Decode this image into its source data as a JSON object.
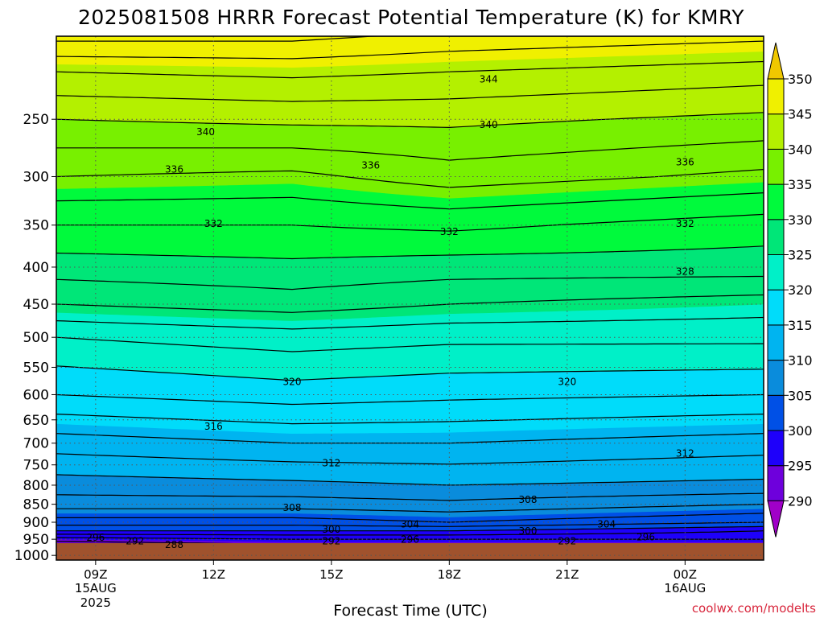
{
  "chart_data": {
    "type": "heatmap",
    "title": "2025081508 HRRR Forecast Potential Temperature (K) for KMRY",
    "xlabel": "Forecast Time (UTC)",
    "ylabel": "",
    "units": "K",
    "x_ticks": [
      {
        "hour": 9,
        "label": "09Z",
        "sub": [
          "15AUG",
          "2025"
        ]
      },
      {
        "hour": 12,
        "label": "12Z",
        "sub": []
      },
      {
        "hour": 15,
        "label": "15Z",
        "sub": []
      },
      {
        "hour": 18,
        "label": "18Z",
        "sub": []
      },
      {
        "hour": 21,
        "label": "21Z",
        "sub": []
      },
      {
        "hour": 24,
        "label": "00Z",
        "sub": [
          "16AUG"
        ]
      }
    ],
    "xlim": [
      8,
      26
    ],
    "y_ticks": [
      250,
      300,
      350,
      400,
      450,
      500,
      550,
      600,
      650,
      700,
      750,
      800,
      850,
      900,
      950,
      1000
    ],
    "ylim_hPa": [
      1015,
      192
    ],
    "y_scale": "log",
    "colorbar": {
      "levels": [
        290,
        295,
        300,
        305,
        310,
        315,
        320,
        325,
        330,
        335,
        340,
        345,
        350
      ],
      "labels": [
        "290",
        "295",
        "300",
        "305",
        "310",
        "315",
        "320",
        "325",
        "330",
        "335",
        "340",
        "345",
        "350"
      ],
      "colors": [
        "#a000c8",
        "#6e00dc",
        "#1e00fa",
        "#0050e6",
        "#0a8cdc",
        "#00b4f0",
        "#00dcfa",
        "#00f0c8",
        "#00e678",
        "#00fa3c",
        "#78f000",
        "#b4f000",
        "#f0f000",
        "#f0c800"
      ],
      "extend": "both"
    },
    "grid": true,
    "surface_color": "#a0522d",
    "contour_interval": 2,
    "profiles": [
      {
        "x": 8,
        "points": [
          [
            1000,
            287
          ],
          [
            990,
            289
          ],
          [
            975,
            291
          ],
          [
            950,
            295
          ],
          [
            925,
            300
          ],
          [
            900,
            303
          ],
          [
            850,
            307
          ],
          [
            800,
            309
          ],
          [
            700,
            313
          ],
          [
            600,
            318
          ],
          [
            500,
            322
          ],
          [
            450,
            326
          ],
          [
            400,
            329
          ],
          [
            350,
            332
          ],
          [
            300,
            336
          ],
          [
            250,
            340
          ],
          [
            215,
            344
          ],
          [
            195,
            348
          ]
        ]
      },
      {
        "x": 14,
        "points": [
          [
            1000,
            288
          ],
          [
            990,
            290
          ],
          [
            975,
            293
          ],
          [
            950,
            296
          ],
          [
            925,
            300
          ],
          [
            900,
            303
          ],
          [
            850,
            307
          ],
          [
            800,
            309.5
          ],
          [
            700,
            314
          ],
          [
            600,
            319
          ],
          [
            500,
            323
          ],
          [
            450,
            327
          ],
          [
            400,
            329.5
          ],
          [
            350,
            332
          ],
          [
            300,
            335.5
          ],
          [
            250,
            340.5
          ],
          [
            215,
            344.5
          ],
          [
            195,
            348
          ]
        ]
      },
      {
        "x": 18,
        "points": [
          [
            1000,
            288
          ],
          [
            990,
            290
          ],
          [
            975,
            293
          ],
          [
            950,
            296
          ],
          [
            925,
            300
          ],
          [
            900,
            304
          ],
          [
            850,
            307.5
          ],
          [
            800,
            310
          ],
          [
            700,
            314
          ],
          [
            600,
            318.5
          ],
          [
            500,
            322.5
          ],
          [
            450,
            326
          ],
          [
            400,
            329
          ],
          [
            350,
            332.5
          ],
          [
            300,
            337
          ],
          [
            250,
            340.5
          ],
          [
            215,
            344
          ],
          [
            195,
            347
          ]
        ]
      },
      {
        "x": 26,
        "points": [
          [
            1000,
            288
          ],
          [
            990,
            290
          ],
          [
            975,
            293
          ],
          [
            950,
            296
          ],
          [
            925,
            298
          ],
          [
            900,
            302
          ],
          [
            850,
            306
          ],
          [
            800,
            309.5
          ],
          [
            700,
            313
          ],
          [
            600,
            318
          ],
          [
            500,
            322.5
          ],
          [
            450,
            325
          ],
          [
            400,
            329
          ],
          [
            350,
            331
          ],
          [
            300,
            335.5
          ],
          [
            250,
            339.5
          ],
          [
            215,
            343
          ],
          [
            195,
            346
          ]
        ]
      }
    ],
    "contour_labels": [
      {
        "value": 344,
        "x": 19.0,
        "p": 220
      },
      {
        "value": 340,
        "x": 11.8,
        "p": 260
      },
      {
        "value": 340,
        "x": 19.0,
        "p": 254
      },
      {
        "value": 336,
        "x": 11.0,
        "p": 293
      },
      {
        "value": 336,
        "x": 16.0,
        "p": 289
      },
      {
        "value": 336,
        "x": 24.0,
        "p": 286
      },
      {
        "value": 332,
        "x": 12.0,
        "p": 348
      },
      {
        "value": 332,
        "x": 18.0,
        "p": 357
      },
      {
        "value": 332,
        "x": 24.0,
        "p": 348
      },
      {
        "value": 328,
        "x": 24.0,
        "p": 405
      },
      {
        "value": 320,
        "x": 14.0,
        "p": 575
      },
      {
        "value": 320,
        "x": 21.0,
        "p": 575
      },
      {
        "value": 316,
        "x": 12.0,
        "p": 663
      },
      {
        "value": 312,
        "x": 15.0,
        "p": 745
      },
      {
        "value": 312,
        "x": 24.0,
        "p": 722
      },
      {
        "value": 308,
        "x": 14.0,
        "p": 858
      },
      {
        "value": 308,
        "x": 20.0,
        "p": 837
      },
      {
        "value": 304,
        "x": 17.0,
        "p": 905
      },
      {
        "value": 304,
        "x": 22.0,
        "p": 905
      },
      {
        "value": 300,
        "x": 15.0,
        "p": 920
      },
      {
        "value": 300,
        "x": 20.0,
        "p": 925
      },
      {
        "value": 296,
        "x": 9.0,
        "p": 944
      },
      {
        "value": 296,
        "x": 17.0,
        "p": 950
      },
      {
        "value": 296,
        "x": 23.0,
        "p": 942
      },
      {
        "value": 292,
        "x": 10.0,
        "p": 955
      },
      {
        "value": 292,
        "x": 15.0,
        "p": 955
      },
      {
        "value": 292,
        "x": 21.0,
        "p": 955
      },
      {
        "value": 288,
        "x": 11.0,
        "p": 965
      }
    ],
    "credit": "coolwx.com/modelts"
  }
}
